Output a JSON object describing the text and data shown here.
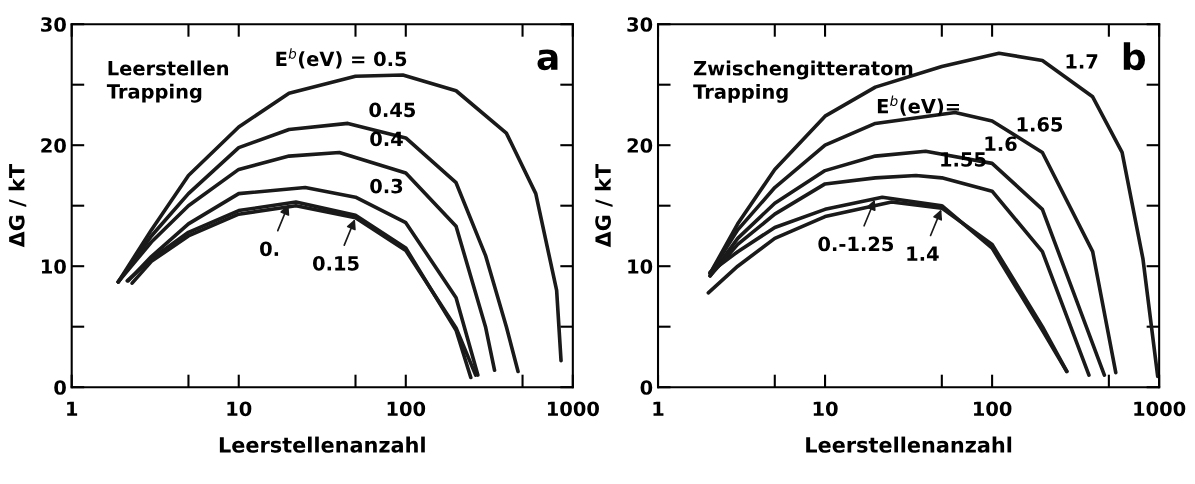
{
  "chart_data": [
    {
      "type": "line",
      "title": "a",
      "xlabel": "Leerstellenanzahl",
      "ylabel": "ΔG / kT",
      "log": "x",
      "grid": false,
      "xlim": [
        1,
        1000
      ],
      "ylim": [
        0,
        30
      ],
      "xticks": [
        1,
        {
          "value": 5,
          "label": null
        },
        10,
        {
          "value": 50,
          "label": null
        },
        100,
        {
          "value": 500,
          "label": null
        },
        1000
      ],
      "yticks": [
        0,
        {
          "value": 5,
          "label": null
        },
        10,
        {
          "value": 15,
          "label": null
        },
        20,
        {
          "value": 25,
          "label": null
        },
        30
      ],
      "series": [
        {
          "color": "#1a1a1a",
          "x": [
            1.9,
            3,
            5,
            10,
            20,
            50,
            96,
            200,
            400,
            600,
            800,
            850
          ],
          "values": [
            8.7,
            13,
            17.5,
            21.5,
            24.3,
            25.7,
            25.8,
            24.5,
            21,
            16,
            8,
            2.2
          ]
        },
        {
          "color": "#1a1a1a",
          "x": [
            1.9,
            3,
            5,
            10,
            20,
            45,
            100,
            200,
            300,
            400,
            470
          ],
          "values": [
            8.7,
            12.5,
            16,
            19.8,
            21.3,
            21.8,
            20.6,
            16.9,
            10.9,
            5,
            1.3
          ]
        },
        {
          "color": "#1a1a1a",
          "x": [
            1.9,
            3,
            5,
            10,
            20,
            40,
            100,
            200,
            300,
            340
          ],
          "values": [
            8.7,
            12,
            15,
            18,
            19.1,
            19.4,
            17.7,
            13.3,
            5,
            1.4
          ]
        },
        {
          "color": "#1a1a1a",
          "x": [
            2.18,
            3,
            5,
            10,
            25,
            50,
            100,
            200,
            270
          ],
          "values": [
            8.8,
            10.8,
            13.5,
            16,
            16.5,
            15.7,
            13.6,
            7.4,
            1
          ]
        },
        {
          "color": "#1a1a1a",
          "x": [
            2.15,
            3,
            5,
            10,
            22,
            50,
            100,
            200,
            245
          ],
          "values": [
            8.8,
            10.6,
            12.8,
            14.6,
            15.3,
            14.2,
            11.5,
            4.7,
            0.8
          ]
        },
        {
          "color": "#1a1a1a",
          "x": [
            2.3,
            3,
            5,
            10,
            22,
            50,
            100,
            200,
            262
          ],
          "values": [
            8.6,
            10.4,
            12.5,
            14.3,
            15.0,
            14.0,
            11.3,
            4.9,
            1.0
          ]
        }
      ],
      "annotations": [
        "Leerstellen\nTrapping",
        {
          "text": "E$^{b}$(eV) = 0.5",
          "x": 38,
          "y": 25.4
        },
        {
          "text": "0.45",
          "x": 77,
          "y": 21.2
        },
        {
          "text": "0.4",
          "x": 71,
          "y": 18.8
        },
        {
          "text": "0.3",
          "x": 71,
          "y": 14.9
        },
        {
          "text": "0.",
          "x": 20,
          "y": 15.2
        },
        {
          "text": "0.15",
          "x": 50,
          "y": 14.0
        }
      ]
    },
    {
      "type": "line",
      "title": "b",
      "xlabel": "Leerstellenanzahl",
      "ylabel": "ΔG / kT",
      "log": "x",
      "grid": false,
      "xlim": [
        1,
        1000
      ],
      "ylim": [
        0,
        30
      ],
      "xticks": [
        1,
        {
          "value": 5,
          "label": null
        },
        10,
        {
          "value": 50,
          "label": null
        },
        100,
        {
          "value": 500,
          "label": null
        },
        1000
      ],
      "yticks": [
        0,
        {
          "value": 5,
          "label": null
        },
        10,
        {
          "value": 15,
          "label": null
        },
        20,
        {
          "value": 25,
          "label": null
        },
        30
      ],
      "series": [
        {
          "color": "#1a1a1a",
          "x": [
            2.05,
            3,
            5,
            10,
            20,
            50,
            110,
            200,
            400,
            600,
            800,
            980
          ],
          "values": [
            9.4,
            13.5,
            18,
            22.4,
            24.8,
            26.5,
            27.6,
            27,
            24,
            19.4,
            10.6,
            0.9
          ]
        },
        {
          "color": "#1a1a1a",
          "x": [
            2.05,
            3,
            5,
            10,
            20,
            60,
            100,
            200,
            400,
            550
          ],
          "values": [
            9.4,
            13,
            16.5,
            20,
            21.8,
            22.7,
            22,
            19.4,
            11.2,
            1.2
          ]
        },
        {
          "color": "#1a1a1a",
          "x": [
            2.05,
            3,
            5,
            10,
            20,
            40,
            100,
            200,
            300,
            470
          ],
          "values": [
            9.2,
            12.3,
            15.2,
            17.9,
            19.1,
            19.5,
            18.5,
            14.7,
            8.2,
            1
          ]
        },
        {
          "color": "#1a1a1a",
          "x": [
            2.05,
            3,
            5,
            10,
            20,
            35,
            50,
            100,
            200,
            380
          ],
          "values": [
            9.2,
            11.8,
            14.3,
            16.8,
            17.3,
            17.5,
            17.3,
            16.2,
            11.2,
            1
          ]
        },
        {
          "color": "#1a1a1a",
          "x": [
            2.05,
            3,
            5,
            10,
            22,
            50,
            100,
            200,
            280
          ],
          "values": [
            9.5,
            11.2,
            13.2,
            14.7,
            15.7,
            15,
            11.5,
            4.7,
            1.3
          ]
        },
        {
          "color": "#1a1a1a",
          "x": [
            2.0,
            3,
            5,
            10,
            25,
            50,
            100,
            200,
            280
          ],
          "values": [
            7.8,
            10,
            12.3,
            14.1,
            15.3,
            14.8,
            11.8,
            5,
            1.3
          ]
        }
      ],
      "annotations": [
        "Zwischengitteratom\nTrapping",
        "E$^{b}$(eV)=",
        {
          "text": "1.7",
          "x": 318,
          "y": 25.2
        },
        {
          "text": "1.65",
          "x": 178,
          "y": 20.0
        },
        {
          "text": "1.6",
          "x": 104,
          "y": 18.4
        },
        {
          "text": "1.55",
          "x": 62,
          "y": 17.1
        },
        {
          "text": "0.-1.25",
          "x": 20,
          "y": 15.6
        },
        {
          "text": "1.4",
          "x": 50,
          "y": 14.8
        }
      ]
    }
  ]
}
